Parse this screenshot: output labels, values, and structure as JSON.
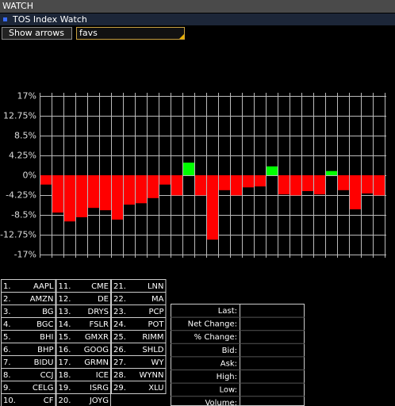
{
  "header": {
    "title": "WATCH",
    "subtitle": "TOS Index Watch"
  },
  "controls": {
    "button": "Show arrows",
    "input": "favs"
  },
  "chart_data": {
    "type": "bar",
    "categories": [
      "AAPL",
      "AMZN",
      "BG",
      "BGC",
      "BHI",
      "BHP",
      "BIDU",
      "CCJ",
      "CELG",
      "CF",
      "CME",
      "DE",
      "DRYS",
      "FSLR",
      "GMXR",
      "GOOG",
      "GRMN",
      "ICE",
      "ISRG",
      "JOYG",
      "LNN",
      "MA",
      "PCP",
      "POT",
      "RIMM",
      "SHLD",
      "WY",
      "WYNN",
      "XLU"
    ],
    "values": [
      -2.0,
      -8.0,
      -9.9,
      -9.0,
      -7.0,
      -7.5,
      -9.5,
      -6.3,
      -6.0,
      -4.9,
      -2.0,
      -4.3,
      2.7,
      -4.3,
      -13.8,
      -3.2,
      -4.3,
      -2.6,
      -2.4,
      1.9,
      -4.1,
      -4.3,
      -3.4,
      -4.1,
      0.9,
      -3.2,
      -7.3,
      -3.9,
      -4.3
    ],
    "colors": {
      "up": "#00ff00",
      "down": "#ff0000"
    },
    "ylim": [
      -17,
      17
    ],
    "yticks": [
      {
        "value": 17,
        "label": "17%"
      },
      {
        "value": 12.75,
        "label": "12.75%"
      },
      {
        "value": 8.5,
        "label": "8.5%"
      },
      {
        "value": 4.25,
        "label": "4.25%"
      },
      {
        "value": 0,
        "label": "0%"
      },
      {
        "value": -4.25,
        "label": "-4.25%"
      },
      {
        "value": -8.5,
        "label": "-8.5%"
      },
      {
        "value": -12.75,
        "label": "-12.75%"
      },
      {
        "value": -17,
        "label": "-17%"
      }
    ],
    "grid": true
  },
  "list_numbers": [
    "1.",
    "2.",
    "3.",
    "4.",
    "5.",
    "6.",
    "7.",
    "8.",
    "9.",
    "10.",
    "11.",
    "12.",
    "13.",
    "14.",
    "15.",
    "16.",
    "17.",
    "18.",
    "19.",
    "20.",
    "21.",
    "22.",
    "23.",
    "24.",
    "25.",
    "26.",
    "27.",
    "28.",
    "29."
  ],
  "quote": {
    "labels": [
      "Last:",
      "Net Change:",
      "% Change:",
      "Bid:",
      "Ask:",
      "High:",
      "Low:",
      "Volume:"
    ]
  }
}
